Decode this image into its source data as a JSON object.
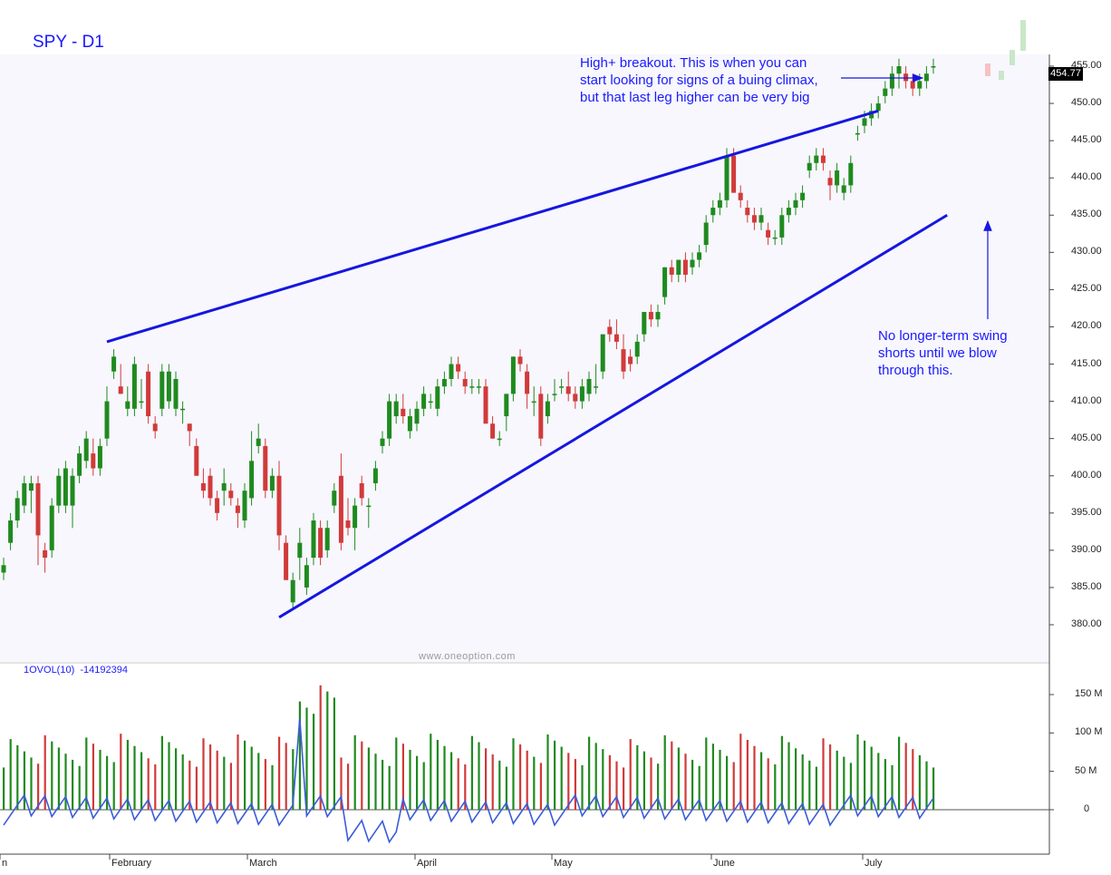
{
  "chart_data": {
    "type": "candlestick",
    "title": "SPY - D1",
    "last_price": "454.77",
    "watermark": "www.oneoption.com",
    "price_axis": {
      "ticks": [
        "455.00",
        "450.00",
        "445.00",
        "440.00",
        "435.00",
        "430.00",
        "425.00",
        "420.00",
        "415.00",
        "410.00",
        "405.00",
        "400.00",
        "395.00",
        "390.00",
        "385.00",
        "380.00"
      ],
      "range": [
        376,
        456
      ]
    },
    "x_axis": {
      "ticks": [
        "n",
        "February",
        "March",
        "April",
        "May",
        "June",
        "July"
      ]
    },
    "annotations": [
      {
        "text": "High+ breakout. This is when you can\nstart looking for signs of a buing climax,\nbut that last leg higher can be very big"
      },
      {
        "text": "No longer-term swing\nshorts until we blow\nthrough this."
      }
    ],
    "trendlines": [
      {
        "name": "upper",
        "from": [
          15,
          418
        ],
        "to": [
          127,
          449
        ]
      },
      {
        "name": "lower",
        "from": [
          40,
          381
        ],
        "to": [
          137,
          435
        ]
      }
    ],
    "candles": [
      {
        "o": 387,
        "h": 389,
        "l": 386,
        "c": 388
      },
      {
        "o": 391,
        "h": 395,
        "l": 390,
        "c": 394
      },
      {
        "o": 394,
        "h": 398,
        "l": 393,
        "c": 397
      },
      {
        "o": 396,
        "h": 400,
        "l": 395,
        "c": 399
      },
      {
        "o": 398,
        "h": 400,
        "l": 395,
        "c": 399
      },
      {
        "o": 399,
        "h": 400,
        "l": 388,
        "c": 392
      },
      {
        "o": 390,
        "h": 391,
        "l": 387,
        "c": 389
      },
      {
        "o": 390,
        "h": 397,
        "l": 389,
        "c": 396
      },
      {
        "o": 396,
        "h": 401,
        "l": 395,
        "c": 400
      },
      {
        "o": 396,
        "h": 402,
        "l": 395,
        "c": 401
      },
      {
        "o": 396,
        "h": 401,
        "l": 393,
        "c": 400
      },
      {
        "o": 400,
        "h": 404,
        "l": 399,
        "c": 403
      },
      {
        "o": 402,
        "h": 406,
        "l": 401,
        "c": 405
      },
      {
        "o": 403,
        "h": 405,
        "l": 400,
        "c": 401
      },
      {
        "o": 401,
        "h": 405,
        "l": 400,
        "c": 404
      },
      {
        "o": 405,
        "h": 412,
        "l": 404,
        "c": 410
      },
      {
        "o": 414,
        "h": 417,
        "l": 413,
        "c": 416
      },
      {
        "o": 412,
        "h": 415,
        "l": 411,
        "c": 411
      },
      {
        "o": 409,
        "h": 412,
        "l": 408,
        "c": 410
      },
      {
        "o": 409,
        "h": 416,
        "l": 408,
        "c": 415
      },
      {
        "o": 410,
        "h": 413,
        "l": 409,
        "c": 410
      },
      {
        "o": 414,
        "h": 415,
        "l": 407,
        "c": 408
      },
      {
        "o": 407,
        "h": 408,
        "l": 405,
        "c": 406
      },
      {
        "o": 409,
        "h": 415,
        "l": 408,
        "c": 414
      },
      {
        "o": 410,
        "h": 415,
        "l": 409,
        "c": 414
      },
      {
        "o": 409,
        "h": 414,
        "l": 408,
        "c": 413
      },
      {
        "o": 409,
        "h": 410,
        "l": 407,
        "c": 409
      },
      {
        "o": 407,
        "h": 407,
        "l": 404,
        "c": 406
      },
      {
        "o": 404,
        "h": 405,
        "l": 400,
        "c": 400
      },
      {
        "o": 399,
        "h": 401,
        "l": 397,
        "c": 398
      },
      {
        "o": 400,
        "h": 401,
        "l": 396,
        "c": 397
      },
      {
        "o": 397,
        "h": 398,
        "l": 394,
        "c": 395
      },
      {
        "o": 398,
        "h": 401,
        "l": 396,
        "c": 399
      },
      {
        "o": 398,
        "h": 399,
        "l": 396,
        "c": 397
      },
      {
        "o": 396,
        "h": 397,
        "l": 393,
        "c": 395
      },
      {
        "o": 394,
        "h": 399,
        "l": 393,
        "c": 398
      },
      {
        "o": 397,
        "h": 406,
        "l": 396,
        "c": 402
      },
      {
        "o": 404,
        "h": 407,
        "l": 403,
        "c": 405
      },
      {
        "o": 404,
        "h": 405,
        "l": 397,
        "c": 398
      },
      {
        "o": 398,
        "h": 401,
        "l": 397,
        "c": 400
      },
      {
        "o": 400,
        "h": 402,
        "l": 390,
        "c": 392
      },
      {
        "o": 391,
        "h": 392,
        "l": 386,
        "c": 386
      },
      {
        "o": 383,
        "h": 387,
        "l": 382,
        "c": 386
      },
      {
        "o": 389,
        "h": 393,
        "l": 386,
        "c": 391
      },
      {
        "o": 385,
        "h": 389,
        "l": 384,
        "c": 388
      },
      {
        "o": 389,
        "h": 395,
        "l": 388,
        "c": 394
      },
      {
        "o": 393,
        "h": 394,
        "l": 388,
        "c": 389
      },
      {
        "o": 390,
        "h": 394,
        "l": 389,
        "c": 393
      },
      {
        "o": 396,
        "h": 399,
        "l": 395,
        "c": 398
      },
      {
        "o": 400,
        "h": 403,
        "l": 390,
        "c": 391
      },
      {
        "o": 394,
        "h": 397,
        "l": 392,
        "c": 393
      },
      {
        "o": 393,
        "h": 397,
        "l": 390,
        "c": 396
      },
      {
        "o": 399,
        "h": 400,
        "l": 396,
        "c": 397
      },
      {
        "o": 396,
        "h": 397,
        "l": 393,
        "c": 396
      },
      {
        "o": 399,
        "h": 402,
        "l": 398,
        "c": 401
      },
      {
        "o": 404,
        "h": 406,
        "l": 403,
        "c": 405
      },
      {
        "o": 405,
        "h": 411,
        "l": 404,
        "c": 410
      },
      {
        "o": 408,
        "h": 411,
        "l": 407,
        "c": 410
      },
      {
        "o": 409,
        "h": 411,
        "l": 407,
        "c": 408
      },
      {
        "o": 406,
        "h": 409,
        "l": 405,
        "c": 408
      },
      {
        "o": 407,
        "h": 410,
        "l": 406,
        "c": 409
      },
      {
        "o": 409,
        "h": 412,
        "l": 408,
        "c": 411
      },
      {
        "o": 410,
        "h": 411,
        "l": 409,
        "c": 410
      },
      {
        "o": 409,
        "h": 413,
        "l": 408,
        "c": 412
      },
      {
        "o": 412,
        "h": 414,
        "l": 411,
        "c": 413
      },
      {
        "o": 413,
        "h": 416,
        "l": 412,
        "c": 415
      },
      {
        "o": 415,
        "h": 416,
        "l": 413,
        "c": 414
      },
      {
        "o": 413,
        "h": 414,
        "l": 411,
        "c": 412
      },
      {
        "o": 412,
        "h": 413,
        "l": 411,
        "c": 412
      },
      {
        "o": 412,
        "h": 413,
        "l": 411,
        "c": 412
      },
      {
        "o": 412,
        "h": 413,
        "l": 407,
        "c": 407
      },
      {
        "o": 407,
        "h": 408,
        "l": 405,
        "c": 405
      },
      {
        "o": 405,
        "h": 406,
        "l": 404,
        "c": 405
      },
      {
        "o": 408,
        "h": 411,
        "l": 406,
        "c": 411
      },
      {
        "o": 411,
        "h": 416,
        "l": 410,
        "c": 416
      },
      {
        "o": 416,
        "h": 417,
        "l": 414,
        "c": 415
      },
      {
        "o": 414,
        "h": 415,
        "l": 409,
        "c": 411
      },
      {
        "o": 410,
        "h": 412,
        "l": 408,
        "c": 410
      },
      {
        "o": 411,
        "h": 412,
        "l": 404,
        "c": 405
      },
      {
        "o": 408,
        "h": 411,
        "l": 407,
        "c": 410
      },
      {
        "o": 411,
        "h": 413,
        "l": 410,
        "c": 411
      },
      {
        "o": 412,
        "h": 413,
        "l": 411,
        "c": 412
      },
      {
        "o": 412,
        "h": 414,
        "l": 410,
        "c": 411
      },
      {
        "o": 411,
        "h": 412,
        "l": 409,
        "c": 410
      },
      {
        "o": 410,
        "h": 413,
        "l": 409,
        "c": 412
      },
      {
        "o": 411,
        "h": 414,
        "l": 410,
        "c": 413
      },
      {
        "o": 412,
        "h": 415,
        "l": 411,
        "c": 412
      },
      {
        "o": 414,
        "h": 419,
        "l": 413,
        "c": 419
      },
      {
        "o": 420,
        "h": 421,
        "l": 418,
        "c": 419
      },
      {
        "o": 419,
        "h": 421,
        "l": 417,
        "c": 418
      },
      {
        "o": 417,
        "h": 419,
        "l": 413,
        "c": 414
      },
      {
        "o": 416,
        "h": 417,
        "l": 414,
        "c": 415
      },
      {
        "o": 416,
        "h": 419,
        "l": 415,
        "c": 418
      },
      {
        "o": 419,
        "h": 422,
        "l": 418,
        "c": 422
      },
      {
        "o": 422,
        "h": 423,
        "l": 420,
        "c": 421
      },
      {
        "o": 421,
        "h": 423,
        "l": 420,
        "c": 422
      },
      {
        "o": 424,
        "h": 428,
        "l": 423,
        "c": 428
      },
      {
        "o": 428,
        "h": 429,
        "l": 426,
        "c": 427
      },
      {
        "o": 427,
        "h": 429,
        "l": 426,
        "c": 429
      },
      {
        "o": 429,
        "h": 430,
        "l": 426,
        "c": 427
      },
      {
        "o": 428,
        "h": 430,
        "l": 427,
        "c": 429
      },
      {
        "o": 429,
        "h": 431,
        "l": 428,
        "c": 430
      },
      {
        "o": 431,
        "h": 435,
        "l": 430,
        "c": 434
      },
      {
        "o": 435,
        "h": 437,
        "l": 434,
        "c": 436
      },
      {
        "o": 436,
        "h": 438,
        "l": 435,
        "c": 437
      },
      {
        "o": 437,
        "h": 444,
        "l": 436,
        "c": 443
      },
      {
        "o": 443,
        "h": 444,
        "l": 438,
        "c": 438
      },
      {
        "o": 438,
        "h": 439,
        "l": 436,
        "c": 437
      },
      {
        "o": 436,
        "h": 437,
        "l": 434,
        "c": 435
      },
      {
        "o": 435,
        "h": 436,
        "l": 433,
        "c": 434
      },
      {
        "o": 434,
        "h": 436,
        "l": 433,
        "c": 435
      },
      {
        "o": 433,
        "h": 434,
        "l": 431,
        "c": 432
      },
      {
        "o": 432,
        "h": 433,
        "l": 431,
        "c": 432
      },
      {
        "o": 432,
        "h": 436,
        "l": 431,
        "c": 435
      },
      {
        "o": 435,
        "h": 437,
        "l": 434,
        "c": 436
      },
      {
        "o": 436,
        "h": 438,
        "l": 435,
        "c": 437
      },
      {
        "o": 437,
        "h": 439,
        "l": 436,
        "c": 438
      },
      {
        "o": 441,
        "h": 443,
        "l": 440,
        "c": 442
      },
      {
        "o": 442,
        "h": 444,
        "l": 441,
        "c": 443
      },
      {
        "o": 443,
        "h": 444,
        "l": 441,
        "c": 442
      },
      {
        "o": 440,
        "h": 441,
        "l": 437,
        "c": 439
      },
      {
        "o": 439,
        "h": 442,
        "l": 438,
        "c": 441
      },
      {
        "o": 438,
        "h": 440,
        "l": 437,
        "c": 439
      },
      {
        "o": 439,
        "h": 443,
        "l": 438,
        "c": 442
      },
      {
        "o": 446,
        "h": 447,
        "l": 445,
        "c": 446
      },
      {
        "o": 447,
        "h": 449,
        "l": 446,
        "c": 448
      },
      {
        "o": 448,
        "h": 450,
        "l": 447,
        "c": 449
      },
      {
        "o": 449,
        "h": 451,
        "l": 448,
        "c": 450
      },
      {
        "o": 451,
        "h": 453,
        "l": 450,
        "c": 452
      },
      {
        "o": 452,
        "h": 455,
        "l": 451,
        "c": 454
      },
      {
        "o": 454,
        "h": 456,
        "l": 452,
        "c": 455
      },
      {
        "o": 454,
        "h": 455,
        "l": 452,
        "c": 453
      },
      {
        "o": 453,
        "h": 454,
        "l": 451,
        "c": 452
      },
      {
        "o": 452,
        "h": 454,
        "l": 451,
        "c": 453
      },
      {
        "o": 453,
        "h": 455,
        "l": 452,
        "c": 454
      },
      {
        "o": 455,
        "h": 456,
        "l": 454,
        "c": 455
      }
    ],
    "volume_indicator": {
      "label": "1OVOL(10)",
      "value": "-14192394",
      "axis_ticks": [
        "150 M",
        "100 M",
        "50 M",
        "0"
      ],
      "range": [
        -58,
        190
      ]
    }
  }
}
